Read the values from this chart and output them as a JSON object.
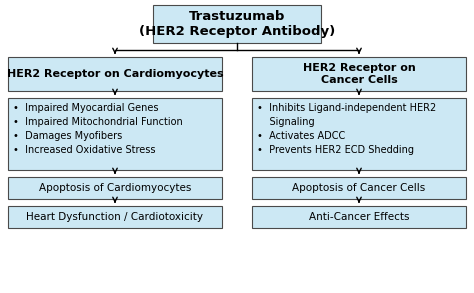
{
  "bg_color": "#ffffff",
  "box_fill": "#cce8f4",
  "box_edge": "#4a4a4a",
  "arrow_color": "#000000",
  "title": "Trastuzumab\n(HER2 Receptor Antibody)",
  "left_header": "HER2 Receptor on Cardiomyocytes",
  "right_header": "HER2 Receptor on\nCancer Cells",
  "left_bullets_lines": [
    "•  Impaired Myocardial Genes",
    "•  Impaired Mitochondrial Function",
    "•  Damages Myofibers",
    "•  Increased Oxidative Stress"
  ],
  "right_bullets_lines": [
    "•  Inhibits Ligand-independent HER2",
    "    Signaling",
    "•  Activates ADCC",
    "•  Prevents HER2 ECD Shedding"
  ],
  "left_mid": "Apoptosis of Cardiomyocytes",
  "right_mid": "Apoptosis of Cancer Cells",
  "left_bot": "Heart Dysfunction / Cardiotoxicity",
  "right_bot": "Anti-Cancer Effects",
  "font_size_title": 9.5,
  "font_size_header": 8.0,
  "font_size_body": 7.0,
  "font_size_small": 7.5
}
